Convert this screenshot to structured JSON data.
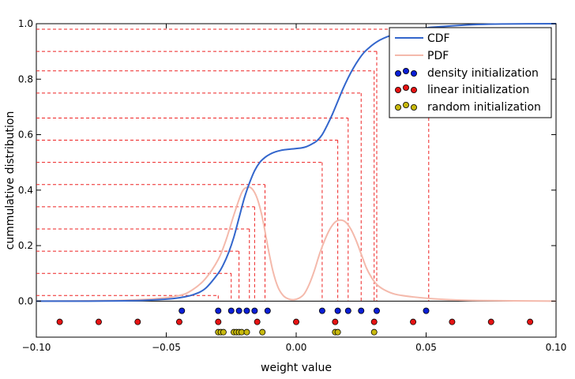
{
  "chart_data": {
    "type": "line",
    "xlabel": "weight value",
    "ylabel": "cummulative distribution",
    "xlim": [
      -0.1,
      0.1
    ],
    "ylim": [
      -0.13,
      1.0
    ],
    "xticks": [
      -0.1,
      -0.05,
      0.0,
      0.05,
      0.1
    ],
    "xtick_labels": [
      "−0.10",
      "−0.05",
      "0.00",
      "0.05",
      "0.10"
    ],
    "yticks": [
      0.0,
      0.2,
      0.4,
      0.6,
      0.8,
      1.0
    ],
    "ytick_labels": [
      "0.0",
      "0.2",
      "0.4",
      "0.6",
      "0.8",
      "1.0"
    ],
    "legend_placement": "top-right",
    "colors": {
      "cdf": "#3366cc",
      "pdf": "#f4b9ab",
      "guide": "#ee2222",
      "density": "#0a1fd6",
      "linear": "#e51313",
      "random": "#c7b80e"
    },
    "series": [
      {
        "name": "CDF",
        "x": [
          -0.1,
          -0.08,
          -0.06,
          -0.05,
          -0.045,
          -0.04,
          -0.035,
          -0.03,
          -0.028,
          -0.026,
          -0.024,
          -0.022,
          -0.02,
          -0.018,
          -0.016,
          -0.014,
          -0.012,
          -0.01,
          -0.008,
          -0.006,
          -0.004,
          -0.002,
          0.0,
          0.002,
          0.004,
          0.006,
          0.008,
          0.01,
          0.012,
          0.014,
          0.016,
          0.018,
          0.02,
          0.022,
          0.024,
          0.026,
          0.028,
          0.03,
          0.032,
          0.035,
          0.04,
          0.045,
          0.05,
          0.06,
          0.07,
          0.08,
          0.1
        ],
        "y": [
          0.0,
          0.0,
          0.002,
          0.007,
          0.012,
          0.022,
          0.045,
          0.1,
          0.132,
          0.175,
          0.23,
          0.3,
          0.37,
          0.425,
          0.47,
          0.5,
          0.518,
          0.53,
          0.538,
          0.543,
          0.546,
          0.548,
          0.55,
          0.552,
          0.557,
          0.566,
          0.578,
          0.6,
          0.635,
          0.675,
          0.72,
          0.765,
          0.805,
          0.84,
          0.87,
          0.895,
          0.913,
          0.928,
          0.94,
          0.953,
          0.968,
          0.978,
          0.985,
          0.992,
          0.997,
          0.999,
          1.0
        ]
      },
      {
        "name": "PDF",
        "x": [
          -0.1,
          -0.07,
          -0.055,
          -0.045,
          -0.04,
          -0.035,
          -0.03,
          -0.027,
          -0.024,
          -0.021,
          -0.019,
          -0.017,
          -0.015,
          -0.013,
          -0.011,
          -0.009,
          -0.007,
          -0.005,
          -0.003,
          -0.001,
          0.001,
          0.003,
          0.005,
          0.007,
          0.009,
          0.011,
          0.013,
          0.015,
          0.017,
          0.019,
          0.021,
          0.023,
          0.025,
          0.027,
          0.029,
          0.031,
          0.034,
          0.038,
          0.045,
          0.055,
          0.07,
          0.1
        ],
        "y": [
          0.0,
          0.002,
          0.008,
          0.02,
          0.04,
          0.08,
          0.15,
          0.22,
          0.31,
          0.39,
          0.41,
          0.405,
          0.37,
          0.3,
          0.2,
          0.11,
          0.05,
          0.02,
          0.008,
          0.005,
          0.01,
          0.025,
          0.06,
          0.11,
          0.17,
          0.22,
          0.26,
          0.285,
          0.292,
          0.285,
          0.26,
          0.22,
          0.17,
          0.12,
          0.085,
          0.06,
          0.04,
          0.025,
          0.015,
          0.007,
          0.002,
          0.0
        ]
      }
    ],
    "guide_lines": [
      {
        "x": -0.03,
        "y": 0.02
      },
      {
        "x": -0.025,
        "y": 0.1
      },
      {
        "x": -0.022,
        "y": 0.18
      },
      {
        "x": -0.018,
        "y": 0.26
      },
      {
        "x": -0.016,
        "y": 0.34
      },
      {
        "x": -0.012,
        "y": 0.42
      },
      {
        "x": 0.01,
        "y": 0.5
      },
      {
        "x": 0.016,
        "y": 0.58
      },
      {
        "x": 0.02,
        "y": 0.66
      },
      {
        "x": 0.025,
        "y": 0.75
      },
      {
        "x": 0.03,
        "y": 0.83
      },
      {
        "x": 0.031,
        "y": 0.9
      },
      {
        "x": 0.051,
        "y": 0.98
      }
    ],
    "scatter_series": [
      {
        "name": "density initialization",
        "y": -0.035,
        "x": [
          -0.044,
          -0.03,
          -0.025,
          -0.022,
          -0.019,
          -0.016,
          -0.011,
          0.01,
          0.016,
          0.02,
          0.025,
          0.031,
          0.05
        ]
      },
      {
        "name": "linear initialization",
        "y": -0.075,
        "x": [
          -0.091,
          -0.076,
          -0.061,
          -0.045,
          -0.03,
          -0.015,
          0.0,
          0.015,
          0.03,
          0.045,
          0.06,
          0.075,
          0.09
        ]
      },
      {
        "name": "random initialization",
        "y": -0.112,
        "x": [
          -0.03,
          -0.029,
          -0.028,
          -0.024,
          -0.023,
          -0.022,
          -0.021,
          -0.019,
          -0.013,
          0.015,
          0.016,
          0.03
        ]
      }
    ]
  }
}
